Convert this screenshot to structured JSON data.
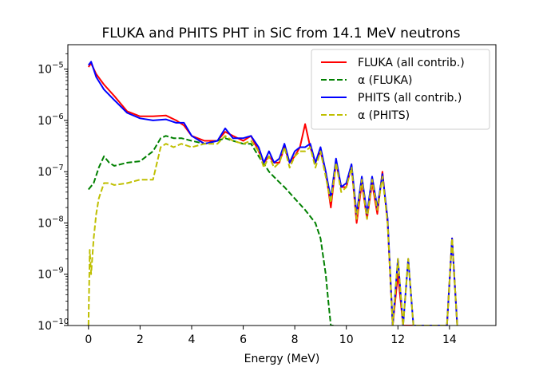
{
  "chart_data": {
    "type": "line",
    "title": "FLUKA and PHITS PHT in SiC from 14.1 MeV neutrons",
    "xlabel": "Energy (MeV)",
    "ylabel": "",
    "xlim": [
      -0.8,
      15.8
    ],
    "ylim": [
      1e-10,
      3e-05
    ],
    "yscale": "log",
    "xticks": [
      0,
      2,
      4,
      6,
      8,
      10,
      12,
      14
    ],
    "xtick_labels": [
      "0",
      "2",
      "4",
      "6",
      "8",
      "10",
      "12",
      "14"
    ],
    "yticks": [
      1e-10,
      1e-09,
      1e-08,
      1e-07,
      1e-06,
      1e-05
    ],
    "ytick_mantissa": "10",
    "ytick_exponents": [
      "−10",
      "−9",
      "−8",
      "−7",
      "−6",
      "−5"
    ],
    "grid": false,
    "legend_position": "top-right",
    "series": [
      {
        "name": "FLUKA (all contrib.)",
        "color": "#ff0000",
        "style": "solid",
        "x": [
          0.0,
          0.1,
          0.3,
          0.6,
          1.0,
          1.5,
          2.0,
          2.5,
          3.0,
          3.4,
          3.7,
          4.0,
          4.5,
          5.0,
          5.3,
          5.6,
          6.0,
          6.3,
          6.6,
          6.8,
          7.0,
          7.2,
          7.4,
          7.6,
          7.8,
          8.0,
          8.2,
          8.4,
          8.6,
          8.8,
          9.0,
          9.2,
          9.4,
          9.6,
          9.8,
          10.0,
          10.2,
          10.4,
          10.6,
          10.8,
          11.0,
          11.2,
          11.4,
          11.6,
          11.8,
          12.0,
          12.2,
          12.4,
          12.6,
          13.9,
          14.1,
          14.3
        ],
        "y": [
          1.1e-05,
          1.3e-05,
          8e-06,
          5e-06,
          3e-06,
          1.5e-06,
          1.2e-06,
          1.2e-06,
          1.25e-06,
          1e-06,
          8e-07,
          5e-07,
          4e-07,
          4e-07,
          6e-07,
          5e-07,
          4e-07,
          5e-07,
          2.5e-07,
          1.5e-07,
          2e-07,
          1.5e-07,
          1.5e-07,
          3e-07,
          1.5e-07,
          2e-07,
          3e-07,
          8.5e-07,
          3e-07,
          1.5e-07,
          2.5e-07,
          1e-07,
          2e-08,
          1.5e-07,
          5e-08,
          5e-08,
          1.3e-07,
          1e-08,
          6e-08,
          1.2e-08,
          6e-08,
          1.5e-08,
          1e-07,
          1e-08,
          1e-10,
          1e-09,
          1e-10,
          1e-10,
          1e-10,
          1e-10,
          5e-09,
          1e-10
        ]
      },
      {
        "name": "α (FLUKA)",
        "color": "#008000",
        "style": "dashed",
        "x": [
          0.0,
          0.2,
          0.4,
          0.6,
          0.8,
          1.0,
          1.5,
          2.0,
          2.5,
          2.8,
          3.0,
          3.3,
          3.6,
          4.0,
          4.5,
          5.0,
          5.3,
          5.6,
          6.0,
          6.3,
          6.6,
          6.9,
          7.0,
          7.3,
          7.6,
          8.0,
          8.4,
          8.8,
          9.0,
          9.2,
          9.3,
          9.4,
          9.5
        ],
        "y": [
          4.5e-08,
          6e-08,
          1.2e-07,
          2e-07,
          1.5e-07,
          1.3e-07,
          1.5e-07,
          1.6e-07,
          2.5e-07,
          4.5e-07,
          5e-07,
          4.5e-07,
          4.5e-07,
          4e-07,
          3.5e-07,
          4e-07,
          4.5e-07,
          4e-07,
          3.5e-07,
          3.5e-07,
          2e-07,
          1.2e-07,
          1e-07,
          7e-08,
          5e-08,
          3e-08,
          1.8e-08,
          1e-08,
          5e-09,
          1e-09,
          3e-10,
          1e-10,
          1e-10
        ]
      },
      {
        "name": "PHITS (all contrib.)",
        "color": "#0000ff",
        "style": "solid",
        "x": [
          0.0,
          0.1,
          0.3,
          0.6,
          1.0,
          1.5,
          2.0,
          2.5,
          3.0,
          3.4,
          3.7,
          4.0,
          4.5,
          5.0,
          5.3,
          5.6,
          6.0,
          6.3,
          6.6,
          6.8,
          7.0,
          7.2,
          7.4,
          7.6,
          7.8,
          8.0,
          8.2,
          8.4,
          8.6,
          8.8,
          9.0,
          9.2,
          9.4,
          9.6,
          9.8,
          10.0,
          10.2,
          10.4,
          10.6,
          10.8,
          11.0,
          11.2,
          11.4,
          11.6,
          11.8,
          12.0,
          12.2,
          12.4,
          12.6,
          13.9,
          14.1,
          14.3
        ],
        "y": [
          1.2e-05,
          1.4e-05,
          7e-06,
          4e-06,
          2.5e-06,
          1.4e-06,
          1.1e-06,
          1e-06,
          1.05e-06,
          9e-07,
          9e-07,
          5e-07,
          3.5e-07,
          4e-07,
          7e-07,
          4.5e-07,
          4.5e-07,
          5e-07,
          3e-07,
          1.5e-07,
          2.5e-07,
          1.5e-07,
          1.8e-07,
          3.5e-07,
          1.5e-07,
          2.5e-07,
          3e-07,
          3e-07,
          3.5e-07,
          1.5e-07,
          3e-07,
          1e-07,
          3e-08,
          1.8e-07,
          5e-08,
          6e-08,
          1.4e-07,
          1.5e-08,
          8e-08,
          1.5e-08,
          8e-08,
          2e-08,
          9e-08,
          1.2e-08,
          1e-10,
          2e-09,
          1e-10,
          2e-09,
          1e-10,
          1e-10,
          5e-09,
          1e-10
        ]
      },
      {
        "name": "α (PHITS)",
        "color": "#bfbf00",
        "style": "dashed",
        "x": [
          0.0,
          0.05,
          0.1,
          0.2,
          0.3,
          0.4,
          0.6,
          0.8,
          1.0,
          1.5,
          2.0,
          2.5,
          2.8,
          3.0,
          3.3,
          3.6,
          4.0,
          4.5,
          5.0,
          5.3,
          5.6,
          6.0,
          6.3,
          6.6,
          6.8,
          7.0,
          7.2,
          7.4,
          7.6,
          7.8,
          8.0,
          8.2,
          8.4,
          8.6,
          8.8,
          9.0,
          9.2,
          9.4,
          9.6,
          9.8,
          10.0,
          10.2,
          10.4,
          10.6,
          10.8,
          11.0,
          11.2,
          11.4,
          11.6,
          11.8,
          12.0,
          12.2,
          12.4,
          12.6,
          13.9,
          14.1,
          14.3
        ],
        "y": [
          1e-10,
          3e-09,
          1e-09,
          5e-09,
          1.5e-08,
          3e-08,
          6e-08,
          6e-08,
          5.5e-08,
          6e-08,
          7e-08,
          7e-08,
          3e-07,
          3.5e-07,
          3e-07,
          3.5e-07,
          3e-07,
          3.5e-07,
          3.5e-07,
          5e-07,
          4e-07,
          3.5e-07,
          4e-07,
          2.5e-07,
          1.2e-07,
          2e-07,
          1.2e-07,
          1.5e-07,
          3e-07,
          1.2e-07,
          2e-07,
          2.5e-07,
          2.5e-07,
          3e-07,
          1.2e-07,
          2.5e-07,
          8e-08,
          2.5e-08,
          1.5e-07,
          4e-08,
          5e-08,
          1.2e-07,
          1.2e-08,
          7e-08,
          1.2e-08,
          7e-08,
          1.8e-08,
          8e-08,
          1e-08,
          1e-10,
          2e-09,
          1e-10,
          2e-09,
          1e-10,
          1e-10,
          5e-09,
          1e-10
        ]
      }
    ]
  }
}
